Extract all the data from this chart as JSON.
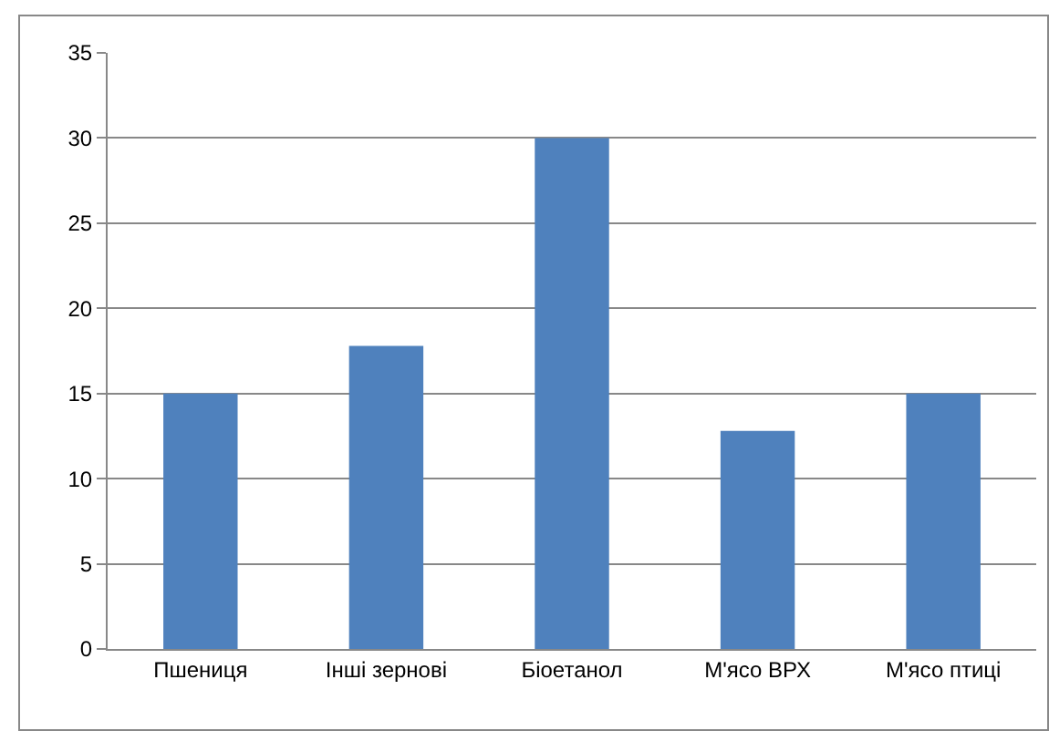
{
  "chart_data": {
    "type": "bar",
    "categories": [
      "Пшениця",
      "Інші зернові",
      "Біоетанол",
      "М'ясо ВРХ",
      "М'ясо птиці"
    ],
    "values": [
      15,
      17.8,
      30,
      12.8,
      15
    ],
    "color": "#4f81bd",
    "ylim": [
      0,
      35
    ],
    "yticks": [
      0,
      5,
      10,
      15,
      20,
      25,
      30,
      35
    ],
    "grid": "y"
  }
}
